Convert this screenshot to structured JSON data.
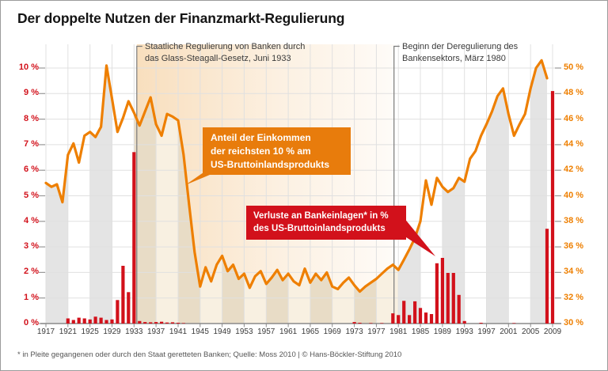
{
  "title": "Der doppelte Nutzen der Finanzmarkt-Regulierung",
  "footnote": "* in Pleite gegangenen oder durch den Staat geretteten Banken; Quelle: Moss 2010 | © Hans-Böckler-Stiftung 2010",
  "annotations": {
    "regulation": {
      "line1": "Staatliche Regulierung von Banken durch",
      "line2": "das Glass-Steagall-Gesetz, Juni 1933"
    },
    "deregulation": {
      "line1": "Beginn der Deregulierung des",
      "line2": "Bankensektors, März 1980"
    }
  },
  "callouts": {
    "income": {
      "lines": [
        "Anteil der Einkommen",
        "der reichsten 10 % am",
        "US-Bruttoinlandsprodukts"
      ]
    },
    "losses": {
      "lines": [
        "Verluste an Bankeinlagen* in %",
        "des US-Bruttoinlandsprodukts"
      ]
    }
  },
  "colors": {
    "line_orange": "#ee7f00",
    "bar_red": "#d2111b",
    "callout_orange_bg": "#e87c0c",
    "callout_red_bg": "#d2111b",
    "stripe_gray": "#e4e4e4",
    "stripe_tan": "#e8dcc6",
    "stripe_cream": "#f8f0e1",
    "zone_warm": "#f3c488",
    "grid": "#e0e0e0",
    "axis": "#8a8a8a"
  },
  "chart_data": {
    "type": "line+bar",
    "x_range": [
      1917,
      2009
    ],
    "x_ticks": [
      1917,
      1921,
      1925,
      1929,
      1933,
      1937,
      1941,
      1945,
      1949,
      1953,
      1957,
      1961,
      1965,
      1969,
      1973,
      1977,
      1981,
      1985,
      1989,
      1993,
      1997,
      2001,
      2005,
      2009
    ],
    "left_axis": {
      "min": 0,
      "max": 10,
      "color": "#d2111b",
      "ticks": [
        "0 %",
        "1 %",
        "2 %",
        "3 %",
        "4 %",
        "5 %",
        "6 %",
        "7 %",
        "8 %",
        "9 %",
        "10 %"
      ]
    },
    "right_axis": {
      "min": 30,
      "max": 50,
      "color": "#ee7f00",
      "ticks": [
        "30 %",
        "32 %",
        "34 %",
        "36 %",
        "38 %",
        "40 %",
        "42 %",
        "44 %",
        "46 %",
        "48 %",
        "50 %"
      ]
    },
    "events": [
      {
        "year": 1933.5,
        "label": "Staatliche Regulierung von Banken durch das Glass-Steagall-Gesetz, Juni 1933"
      },
      {
        "year": 1980.2,
        "label": "Beginn der Deregulierung des Bankensektors, März 1980"
      }
    ],
    "line_series": {
      "name": "Anteil der Einkommen der reichsten 10 % am US-Bruttoinlandsprodukt",
      "axis": "right",
      "start_year": 1917,
      "values": [
        41.0,
        40.7,
        40.9,
        39.5,
        43.2,
        44.1,
        42.6,
        44.7,
        45.0,
        44.6,
        45.4,
        50.2,
        47.6,
        45.0,
        46.1,
        47.4,
        46.5,
        45.5,
        46.6,
        47.7,
        45.6,
        44.7,
        46.4,
        46.2,
        45.9,
        43.2,
        39.3,
        35.6,
        32.9,
        34.4,
        33.3,
        34.6,
        35.3,
        34.1,
        34.6,
        33.5,
        33.9,
        32.8,
        33.7,
        34.1,
        33.1,
        33.6,
        34.2,
        33.4,
        33.9,
        33.3,
        33.0,
        34.3,
        33.2,
        33.9,
        33.4,
        34.0,
        32.9,
        32.7,
        33.2,
        33.6,
        33.0,
        32.5,
        32.9,
        33.2,
        33.5,
        33.9,
        34.3,
        34.6,
        34.2,
        35.0,
        35.8,
        36.7,
        38.0,
        41.2,
        39.3,
        41.4,
        40.7,
        40.3,
        40.6,
        41.4,
        41.1,
        42.9,
        43.5,
        44.7,
        45.6,
        46.6,
        47.8,
        48.4,
        46.4,
        44.7,
        45.6,
        46.4,
        48.4,
        50.0,
        50.6,
        49.2
      ]
    },
    "bar_series": {
      "name": "Verluste an Bankeinlagen in % des US-Bruttoinlandsprodukts",
      "axis": "left",
      "points": [
        [
          1921,
          0.2
        ],
        [
          1922,
          0.14
        ],
        [
          1923,
          0.23
        ],
        [
          1924,
          0.2
        ],
        [
          1925,
          0.16
        ],
        [
          1926,
          0.27
        ],
        [
          1927,
          0.23
        ],
        [
          1928,
          0.14
        ],
        [
          1929,
          0.16
        ],
        [
          1930,
          0.92
        ],
        [
          1931,
          2.26
        ],
        [
          1932,
          1.23
        ],
        [
          1933,
          6.71
        ],
        [
          1934,
          0.1
        ],
        [
          1935,
          0.06
        ],
        [
          1936,
          0.05
        ],
        [
          1937,
          0.06
        ],
        [
          1938,
          0.07
        ],
        [
          1939,
          0.04
        ],
        [
          1940,
          0.05
        ],
        [
          1941,
          0.03
        ],
        [
          1942,
          0.02
        ],
        [
          1973,
          0.06
        ],
        [
          1974,
          0.03
        ],
        [
          1976,
          0.02
        ],
        [
          1978,
          0.02
        ],
        [
          1980,
          0.4
        ],
        [
          1981,
          0.33
        ],
        [
          1982,
          0.89
        ],
        [
          1983,
          0.33
        ],
        [
          1984,
          0.87
        ],
        [
          1985,
          0.61
        ],
        [
          1986,
          0.43
        ],
        [
          1987,
          0.37
        ],
        [
          1988,
          2.36
        ],
        [
          1989,
          2.57
        ],
        [
          1990,
          1.98
        ],
        [
          1991,
          1.98
        ],
        [
          1992,
          1.12
        ],
        [
          1993,
          0.1
        ],
        [
          1996,
          0.03
        ],
        [
          2002,
          0.02
        ],
        [
          2008,
          3.71
        ],
        [
          2009,
          9.1
        ]
      ]
    }
  }
}
